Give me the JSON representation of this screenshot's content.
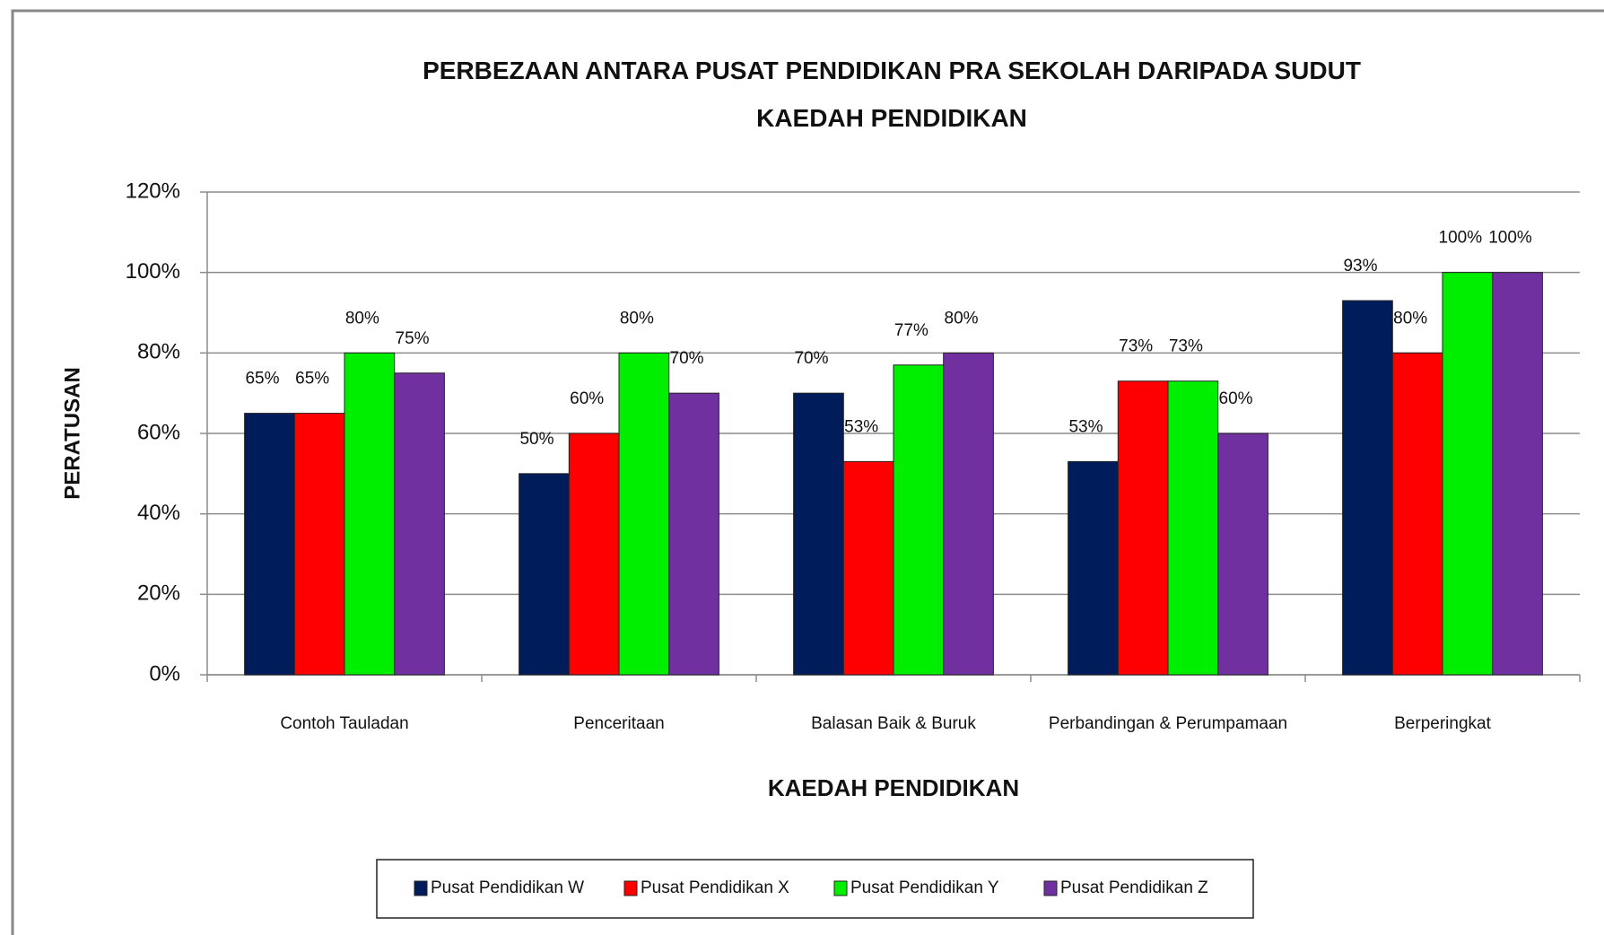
{
  "chart_data": {
    "type": "bar",
    "title": "PERBEZAAN ANTARA PUSAT PENDIDIKAN PRA SEKOLAH DARIPADA SUDUT KAEDAH PENDIDIKAN",
    "x_label": "KAEDAH PENDIDIKAN",
    "y_label": "PERATUSAN",
    "categories": [
      "Contoh Tauladan",
      "Penceritaan",
      "Balasan Baik & Buruk",
      "Perbandingan & Perumpamaan",
      "Berperingkat"
    ],
    "series": [
      {
        "name": "Pusat Pendidikan W",
        "color": "#001c5a",
        "values": [
          65,
          50,
          70,
          53,
          93
        ],
        "value_labels": [
          "65%",
          "50%",
          "70%",
          "53%",
          "93%"
        ]
      },
      {
        "name": "Pusat Pendidikan X",
        "color": "#ff0000",
        "values": [
          65,
          60,
          53,
          73,
          80
        ],
        "value_labels": [
          "65%",
          "60%",
          "53%",
          "73%",
          "80%"
        ]
      },
      {
        "name": "Pusat Pendidikan Y",
        "color": "#00ee00",
        "values": [
          80,
          80,
          77,
          73,
          100
        ],
        "value_labels": [
          "80%",
          "80%",
          "77%",
          "73%",
          "100%"
        ]
      },
      {
        "name": "Pusat Pendidikan Z",
        "color": "#7030a0",
        "values": [
          75,
          70,
          80,
          60,
          100
        ],
        "value_labels": [
          "75%",
          "70%",
          "80%",
          "60%",
          "100%"
        ]
      }
    ],
    "ylim": [
      0,
      120
    ],
    "yticks": [
      {
        "value": 0,
        "label": "0%"
      },
      {
        "value": 20,
        "label": "20%"
      },
      {
        "value": 40,
        "label": "40%"
      },
      {
        "value": 60,
        "label": "60%"
      },
      {
        "value": 80,
        "label": "80%"
      },
      {
        "value": 100,
        "label": "100%"
      },
      {
        "value": 120,
        "label": "120%"
      }
    ],
    "grid": true,
    "legend": "bottom"
  }
}
